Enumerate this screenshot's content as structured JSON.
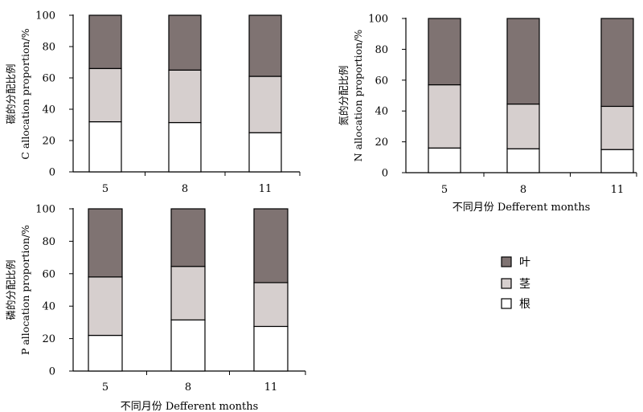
{
  "chart_data": [
    {
      "id": "carbon",
      "type": "bar",
      "stacked": true,
      "categories": [
        "5",
        "8",
        "11"
      ],
      "ylabel_lines": [
        "碳的分配比例",
        "C allocation proportion/%"
      ],
      "xlabel": "",
      "ylim": [
        0,
        100
      ],
      "yticks": [
        "0",
        "20",
        "40",
        "60",
        "80",
        "100"
      ],
      "series": [
        {
          "key": "root",
          "values": [
            32,
            31.5,
            25
          ]
        },
        {
          "key": "stem",
          "values": [
            34,
            33.5,
            36
          ]
        },
        {
          "key": "leaf",
          "values": [
            34,
            35,
            39
          ]
        }
      ]
    },
    {
      "id": "nitrogen",
      "type": "bar",
      "stacked": true,
      "categories": [
        "5",
        "8",
        "11"
      ],
      "ylabel_lines": [
        "氮的分配比例",
        "N allocation proportion/%"
      ],
      "xlabel": "不同月份 Defferent months",
      "ylim": [
        0,
        100
      ],
      "yticks": [
        "0",
        "20",
        "40",
        "60",
        "80",
        "100"
      ],
      "series": [
        {
          "key": "root",
          "values": [
            16,
            15.5,
            15
          ]
        },
        {
          "key": "stem",
          "values": [
            41,
            29,
            28
          ]
        },
        {
          "key": "leaf",
          "values": [
            43,
            55.5,
            57
          ]
        }
      ]
    },
    {
      "id": "phosphorus",
      "type": "bar",
      "stacked": true,
      "categories": [
        "5",
        "8",
        "11"
      ],
      "ylabel_lines": [
        "磷的分配比例",
        "P allocation proportion/%"
      ],
      "xlabel": "不同月份 Defferent months",
      "ylim": [
        0,
        100
      ],
      "yticks": [
        "0",
        "20",
        "40",
        "60",
        "80",
        "100"
      ],
      "series": [
        {
          "key": "root",
          "values": [
            22,
            31.5,
            27.5
          ]
        },
        {
          "key": "stem",
          "values": [
            36,
            33,
            27
          ]
        },
        {
          "key": "leaf",
          "values": [
            42,
            35.5,
            45.5
          ]
        }
      ]
    }
  ],
  "legend": {
    "placement": "right-middle",
    "items": [
      {
        "key": "leaf",
        "label": "叶",
        "color": "#7f7372"
      },
      {
        "key": "stem",
        "label": "茎",
        "color": "#d6cfce"
      },
      {
        "key": "root",
        "label": "根",
        "color": "#ffffff"
      }
    ]
  }
}
